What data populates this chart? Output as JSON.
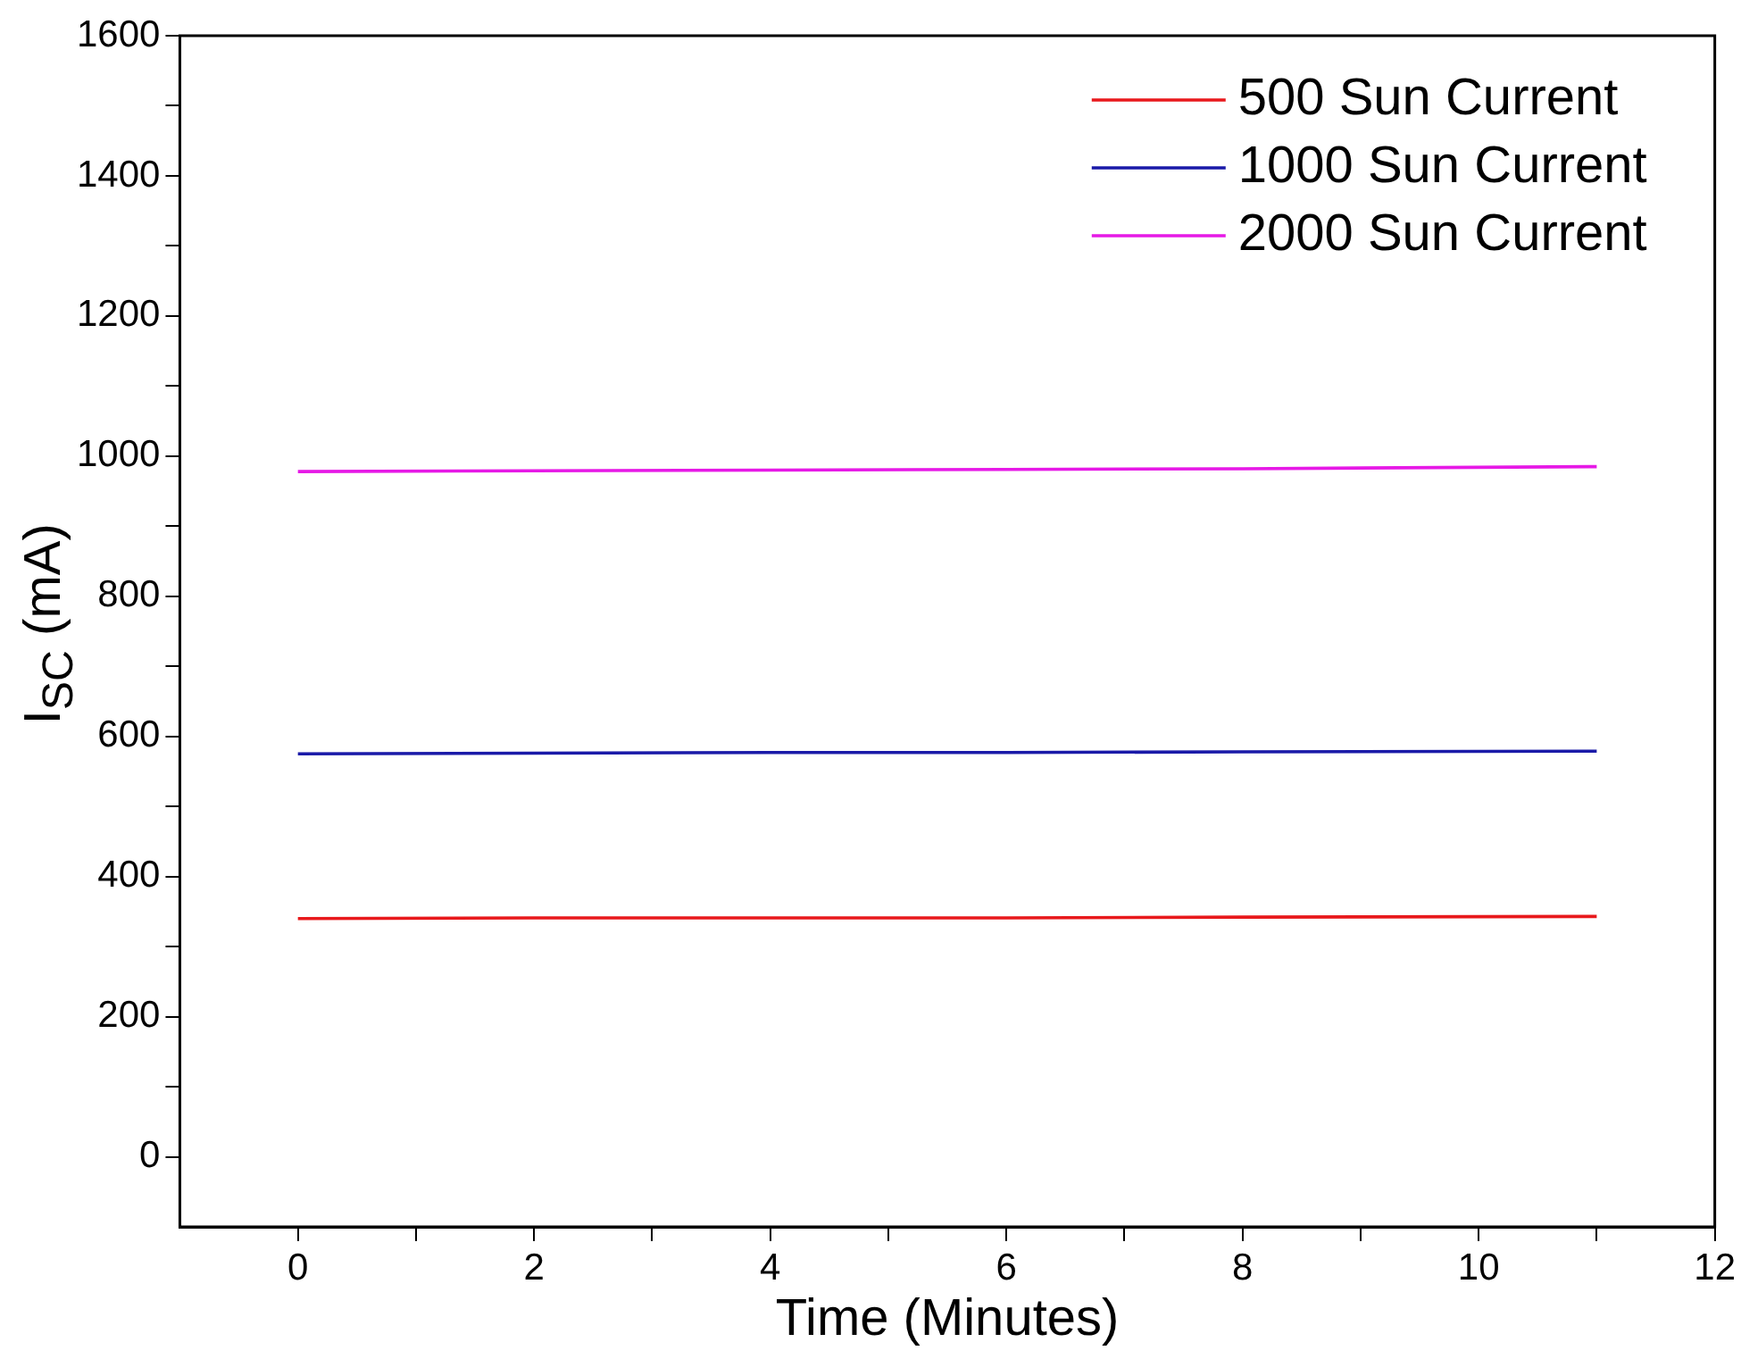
{
  "chart_data": {
    "type": "line",
    "xlabel": "Time (Minutes)",
    "ylabel": "I$_{SC}$ (mA)",
    "x": [
      0,
      2,
      4,
      6,
      8,
      11
    ],
    "series": [
      {
        "name": "500 Sun Current",
        "color": "#e8191c",
        "values": [
          340,
          341,
          341,
          341,
          342,
          343
        ]
      },
      {
        "name": "1000 Sun Current",
        "color": "#1a1aa8",
        "values": [
          575,
          576,
          577,
          577,
          578,
          579
        ]
      },
      {
        "name": "2000 Sun Current",
        "color": "#e619e6",
        "values": [
          978,
          979,
          980,
          981,
          982,
          985
        ]
      }
    ],
    "xlim": [
      -1,
      12
    ],
    "xticks": [
      0,
      {
        "value": 1,
        "label": null
      },
      2,
      {
        "value": 3,
        "label": null
      },
      4,
      {
        "value": 5,
        "label": null
      },
      6,
      {
        "value": 7,
        "label": null
      },
      8,
      {
        "value": 9,
        "label": null
      },
      10,
      {
        "value": 11,
        "label": null
      },
      12
    ],
    "ylim": [
      -100,
      1600
    ],
    "yticks": [
      0,
      {
        "value": 100,
        "label": null
      },
      200,
      {
        "value": 300,
        "label": null
      },
      400,
      {
        "value": 500,
        "label": null
      },
      600,
      {
        "value": 700,
        "label": null
      },
      800,
      {
        "value": 900,
        "label": null
      },
      1000,
      {
        "value": 1100,
        "label": null
      },
      1200,
      {
        "value": 1300,
        "label": null
      },
      1400,
      {
        "value": 1500,
        "label": null
      },
      1600
    ],
    "grid": false,
    "legend": "top right",
    "marker": "none",
    "line_style": "solid"
  }
}
